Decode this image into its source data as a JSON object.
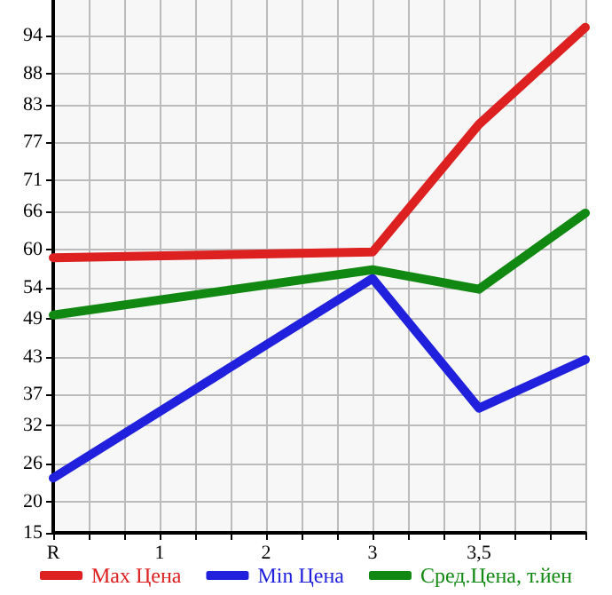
{
  "chart_data": {
    "type": "line",
    "categories": [
      "R",
      "1",
      "2",
      "3",
      "3,5",
      null
    ],
    "series": [
      {
        "name": "Max Цена",
        "color": "#dd2020",
        "values": [
          58.7,
          null,
          null,
          59.6,
          79.9,
          95.3
        ]
      },
      {
        "name": "Min Цена",
        "color": "#2020dd",
        "values": [
          23.7,
          null,
          null,
          55.4,
          34.8,
          42.5
        ]
      },
      {
        "name": "Сред.Цена, т.йен",
        "color": "#118811",
        "values": [
          49.6,
          null,
          null,
          56.8,
          53.7,
          65.8
        ]
      }
    ],
    "ylim": [
      15,
      99.64
    ],
    "yticks": [
      15,
      20,
      26,
      32,
      37,
      43,
      49,
      54,
      60,
      66,
      71,
      77,
      83,
      88,
      94
    ],
    "grid": true,
    "legend": "bottom",
    "marker": "none",
    "line_style": "solid"
  }
}
